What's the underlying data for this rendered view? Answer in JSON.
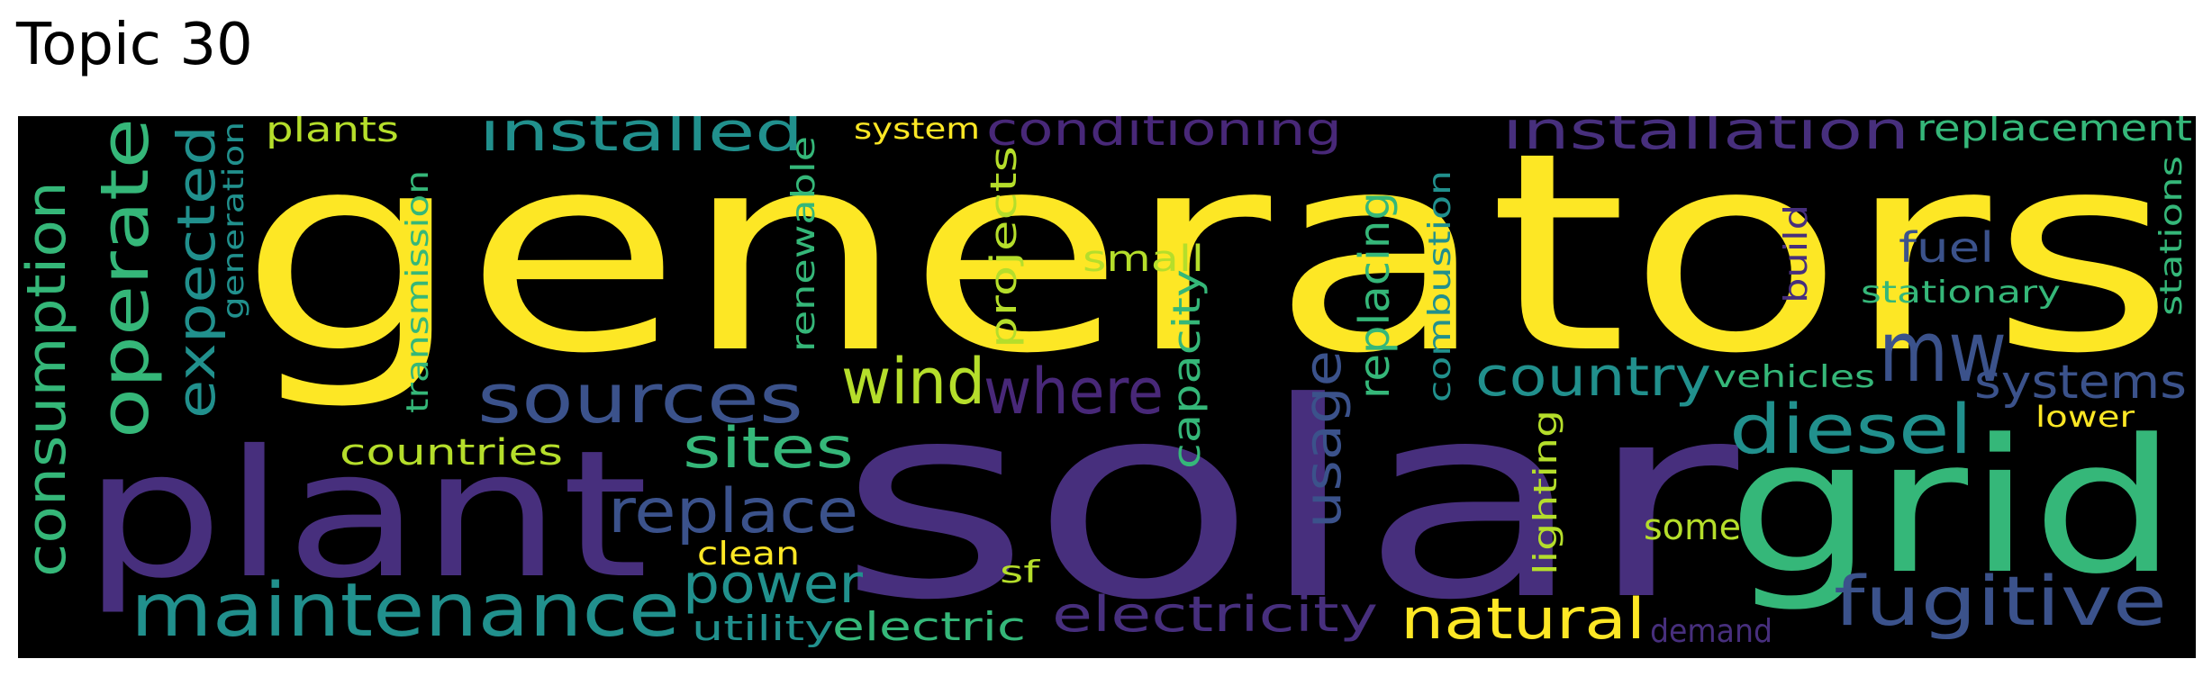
{
  "title": "Topic 30",
  "palette": {
    "background": "#000000",
    "yellow": "#fde725",
    "purple": "#472f7d",
    "dark_blue": "#3b528b",
    "teal": "#21908d",
    "green": "#35b779",
    "lime": "#b5de2b",
    "indigo": "#482878"
  },
  "words": {
    "generators": "generators",
    "solar": "solar",
    "plant": "plant",
    "grid": "grid",
    "maintenance": "maintenance",
    "sources": "sources",
    "operate": "operate",
    "consumption": "consumption",
    "installed": "installed",
    "installation": "installation",
    "conditioning": "conditioning",
    "replacement": "replacement",
    "expected": "expected",
    "generation": "generation",
    "plants": "plants",
    "system": "system",
    "renewable": "renewable",
    "transmission": "transmission",
    "projects": "projects",
    "small": "small",
    "replacing": "replacing",
    "combustion": "combustion",
    "build": "build",
    "fuel": "fuel",
    "stationary": "stationary",
    "stations": "stations",
    "mw": "mw",
    "wind": "wind",
    "where": "where",
    "capacity": "capacity",
    "country": "country",
    "vehicles": "vehicles",
    "systems": "systems",
    "diesel": "diesel",
    "lower": "lower",
    "sites": "sites",
    "countries": "countries",
    "usage": "usage",
    "replace": "replace",
    "lighting": "lighting",
    "some": "some",
    "clean": "clean",
    "power": "power",
    "sf": "sf",
    "fugitive": "fugitive",
    "utility": "utility",
    "electric": "electric",
    "electricity": "electricity",
    "natural": "natural",
    "demand": "demand"
  }
}
